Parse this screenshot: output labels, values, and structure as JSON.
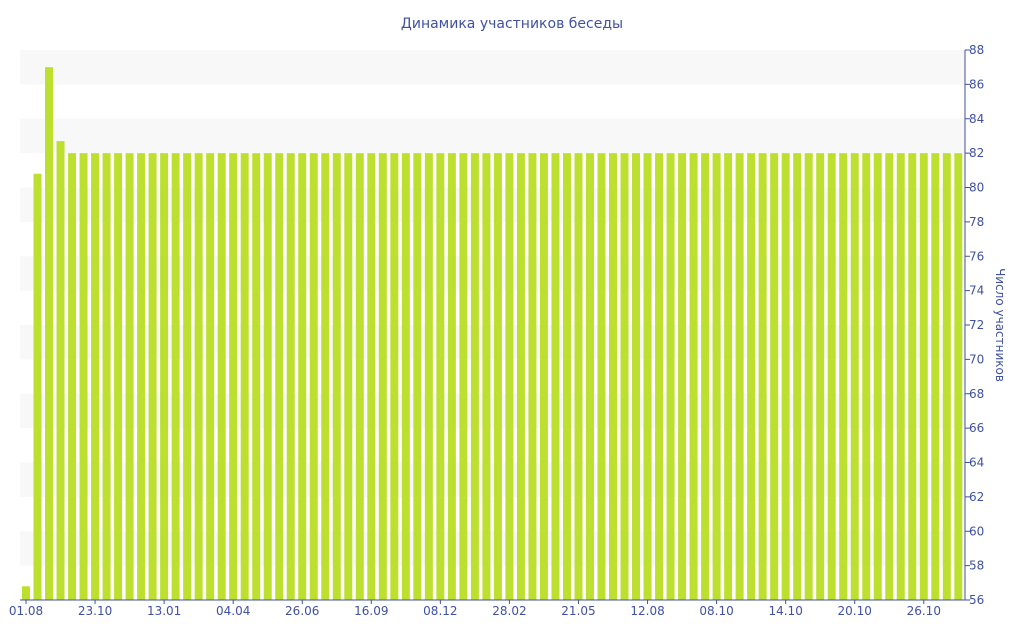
{
  "chart_data": {
    "type": "bar",
    "title": "Динамика участников беседы",
    "ylabel": "Число участников",
    "xlabel": "",
    "ylim": [
      56,
      88
    ],
    "yticks": [
      56,
      58,
      60,
      62,
      64,
      66,
      68,
      70,
      72,
      74,
      76,
      78,
      80,
      82,
      84,
      86,
      88
    ],
    "y_axis_side": "right",
    "grid": "alternating horizontal bands",
    "x_tick_labels": [
      {
        "bar": 0,
        "label": "01.08"
      },
      {
        "bar": 6,
        "label": "23.10"
      },
      {
        "bar": 12,
        "label": "13.01"
      },
      {
        "bar": 18,
        "label": "04.04"
      },
      {
        "bar": 24,
        "label": "26.06"
      },
      {
        "bar": 30,
        "label": "16.09"
      },
      {
        "bar": 36,
        "label": "08.12"
      },
      {
        "bar": 42,
        "label": "28.02"
      },
      {
        "bar": 48,
        "label": "21.05"
      },
      {
        "bar": 54,
        "label": "12.08"
      },
      {
        "bar": 60,
        "label": "08.10"
      },
      {
        "bar": 66,
        "label": "14.10"
      },
      {
        "bar": 72,
        "label": "20.10"
      },
      {
        "bar": 78,
        "label": "26.10"
      }
    ],
    "values": [
      56.8,
      80.8,
      87,
      82.7,
      82,
      82,
      82,
      82,
      82,
      82,
      82,
      82,
      82,
      82,
      82,
      82,
      82,
      82,
      82,
      82,
      82,
      82,
      82,
      82,
      82,
      82,
      82,
      82,
      82,
      82,
      82,
      82,
      82,
      82,
      82,
      82,
      82,
      82,
      82,
      82,
      82,
      82,
      82,
      82,
      82,
      82,
      82,
      82,
      82,
      82,
      82,
      82,
      82,
      82,
      82,
      82,
      82,
      82,
      82,
      82,
      82,
      82,
      82,
      82,
      82,
      82,
      82,
      82,
      82,
      82,
      82,
      82,
      82,
      82,
      82,
      82,
      82,
      82,
      82,
      82,
      82,
      82
    ],
    "colors": {
      "bar": "#bde030",
      "axis": "#3f51a3",
      "band": "#f8f8f8"
    }
  }
}
